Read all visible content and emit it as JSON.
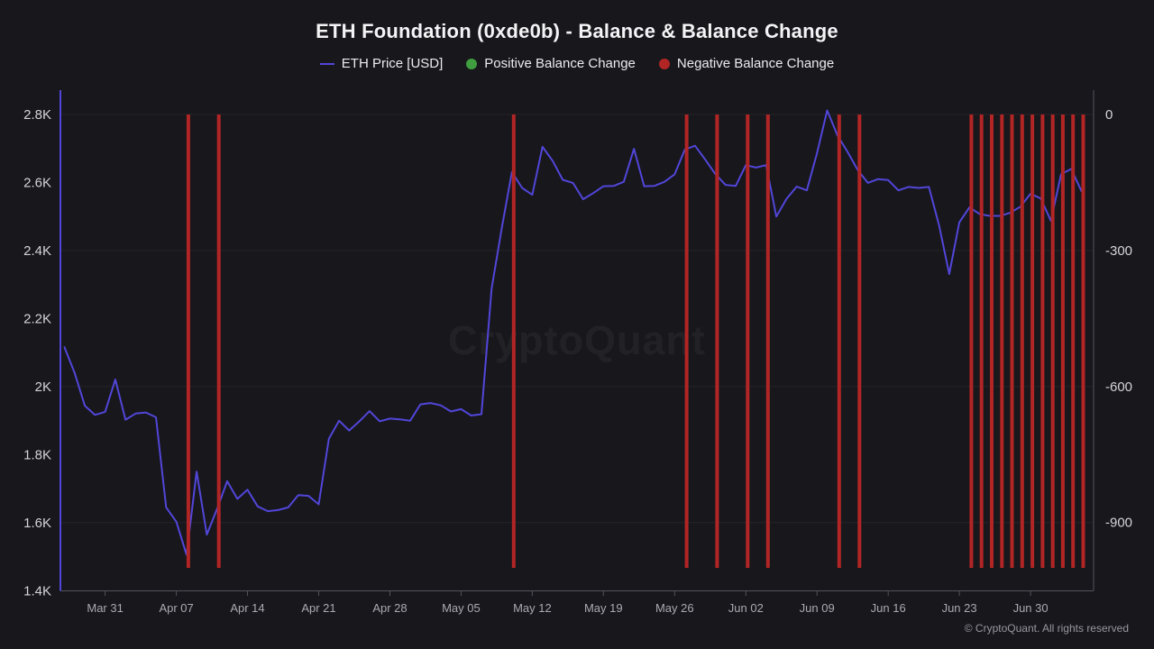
{
  "title": "ETH Foundation (0xde0b) - Balance & Balance Change",
  "watermark": "CryptoQuant",
  "copyright": "© CryptoQuant. All rights reserved",
  "legend": [
    {
      "label": "ETH Price [USD]",
      "type": "line",
      "color": "#5246d9"
    },
    {
      "label": "Positive Balance Change",
      "type": "dot",
      "color": "#3f9e3f"
    },
    {
      "label": "Negative Balance Change",
      "type": "dot",
      "color": "#b22525"
    }
  ],
  "chart_data": {
    "type": "mixed",
    "title": "ETH Foundation (0xde0b) - Balance & Balance Change",
    "legend_position": "top",
    "grid": "horizontal-only",
    "x": [
      "Mar 27",
      "Mar 28",
      "Mar 29",
      "Mar 30",
      "Mar 31",
      "Apr 01",
      "Apr 02",
      "Apr 03",
      "Apr 04",
      "Apr 05",
      "Apr 06",
      "Apr 07",
      "Apr 08",
      "Apr 09",
      "Apr 10",
      "Apr 11",
      "Apr 12",
      "Apr 13",
      "Apr 14",
      "Apr 15",
      "Apr 16",
      "Apr 17",
      "Apr 18",
      "Apr 19",
      "Apr 20",
      "Apr 21",
      "Apr 22",
      "Apr 23",
      "Apr 24",
      "Apr 25",
      "Apr 26",
      "Apr 27",
      "Apr 28",
      "Apr 29",
      "Apr 30",
      "May 01",
      "May 02",
      "May 03",
      "May 04",
      "May 05",
      "May 06",
      "May 07",
      "May 08",
      "May 09",
      "May 10",
      "May 11",
      "May 12",
      "May 13",
      "May 14",
      "May 15",
      "May 16",
      "May 17",
      "May 18",
      "May 19",
      "May 20",
      "May 21",
      "May 22",
      "May 23",
      "May 24",
      "May 25",
      "May 26",
      "May 27",
      "May 28",
      "May 29",
      "May 30",
      "May 31",
      "Jun 01",
      "Jun 02",
      "Jun 03",
      "Jun 04",
      "Jun 05",
      "Jun 06",
      "Jun 07",
      "Jun 08",
      "Jun 09",
      "Jun 10",
      "Jun 11",
      "Jun 12",
      "Jun 13",
      "Jun 14",
      "Jun 15",
      "Jun 16",
      "Jun 17",
      "Jun 18",
      "Jun 19",
      "Jun 20",
      "Jun 21",
      "Jun 22",
      "Jun 23",
      "Jun 24",
      "Jun 25",
      "Jun 26",
      "Jun 27",
      "Jun 28",
      "Jun 29",
      "Jun 30",
      "Jul 01",
      "Jul 02",
      "Jul 03",
      "Jul 04",
      "Jul 05"
    ],
    "series": [
      {
        "name": "ETH Price [USD]",
        "type": "line",
        "axis": "left",
        "color": "#5246d9",
        "values": [
          2116,
          2040,
          1944,
          1917,
          1926,
          2021,
          1903,
          1921,
          1924,
          1910,
          1645,
          1603,
          1506,
          1750,
          1565,
          1640,
          1722,
          1670,
          1697,
          1648,
          1634,
          1637,
          1645,
          1681,
          1679,
          1654,
          1847,
          1900,
          1871,
          1898,
          1928,
          1898,
          1906,
          1904,
          1900,
          1948,
          1952,
          1945,
          1927,
          1934,
          1915,
          1919,
          2288,
          2465,
          2631,
          2584,
          2564,
          2705,
          2664,
          2608,
          2599,
          2551,
          2569,
          2589,
          2590,
          2602,
          2699,
          2589,
          2590,
          2602,
          2624,
          2697,
          2708,
          2668,
          2625,
          2593,
          2590,
          2651,
          2644,
          2651,
          2500,
          2552,
          2588,
          2577,
          2686,
          2812,
          2739,
          2690,
          2637,
          2599,
          2610,
          2607,
          2577,
          2587,
          2584,
          2587,
          2474,
          2331,
          2483,
          2527,
          2507,
          2502,
          2502,
          2511,
          2529,
          2567,
          2553,
          2487,
          2624,
          2640,
          2575
        ]
      },
      {
        "name": "Positive Balance Change",
        "type": "bar",
        "axis": "right",
        "color": "#3f9e3f",
        "dates": [],
        "values": []
      },
      {
        "name": "Negative Balance Change",
        "type": "bar",
        "axis": "right",
        "color": "#b22525",
        "dates": [
          "Apr 08",
          "Apr 11",
          "May 10",
          "May 27",
          "May 30",
          "Jun 02",
          "Jun 04",
          "Jun 11",
          "Jun 13",
          "Jun 24",
          "Jun 25",
          "Jun 26",
          "Jun 27",
          "Jun 28",
          "Jun 29",
          "Jun 30",
          "Jul 01",
          "Jul 02",
          "Jul 03",
          "Jul 04",
          "Jul 05"
        ],
        "values": [
          -1000,
          -1000,
          -1000,
          -1000,
          -1000,
          -1000,
          -1000,
          -1000,
          -1000,
          -1000,
          -1000,
          -1000,
          -1000,
          -1000,
          -1000,
          -1000,
          -1000,
          -1000,
          -1000,
          -1000,
          -1000
        ]
      }
    ],
    "left_axis": {
      "ticks": [
        "2.8K",
        "2.6K",
        "2.4K",
        "2.2K",
        "2K",
        "1.8K",
        "1.6K",
        "1.4K"
      ],
      "tick_values": [
        2800,
        2600,
        2400,
        2200,
        2000,
        1800,
        1600,
        1400
      ]
    },
    "right_axis": {
      "ticks": [
        "0",
        "-300",
        "-600",
        "-900"
      ],
      "tick_values": [
        0,
        -300,
        -600,
        -900
      ]
    },
    "x_axis": {
      "labels": [
        "Mar 31",
        "Apr 07",
        "Apr 14",
        "Apr 21",
        "Apr 28",
        "May 05",
        "May 12",
        "May 19",
        "May 26",
        "Jun 02",
        "Jun 09",
        "Jun 16",
        "Jun 23",
        "Jun 30"
      ],
      "first_index": 4,
      "step": 7
    }
  }
}
